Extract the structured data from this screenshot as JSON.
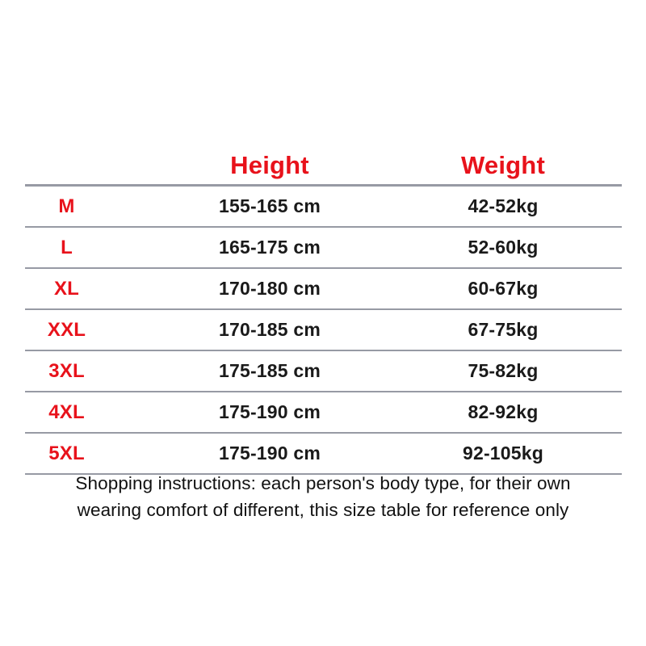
{
  "table": {
    "headers": {
      "size": "",
      "height": "Height",
      "weight": "Weight"
    },
    "rows": [
      {
        "size": "M",
        "height": "155-165 cm",
        "weight": "42-52kg"
      },
      {
        "size": "L",
        "height": "165-175 cm",
        "weight": "52-60kg"
      },
      {
        "size": "XL",
        "height": "170-180 cm",
        "weight": "60-67kg"
      },
      {
        "size": "XXL",
        "height": "170-185 cm",
        "weight": "67-75kg"
      },
      {
        "size": "3XL",
        "height": "175-185 cm",
        "weight": "75-82kg"
      },
      {
        "size": "4XL",
        "height": "175-190 cm",
        "weight": "82-92kg"
      },
      {
        "size": "5XL",
        "height": "175-190 cm",
        "weight": "92-105kg"
      }
    ]
  },
  "footer": {
    "note": "Shopping instructions: each person's body type, for their own wearing comfort of different, this size table for reference only"
  },
  "colors": {
    "accent_red": "#e8121b",
    "divider_gray": "#979aa4",
    "text_black": "#1a1a1a",
    "background": "#ffffff"
  }
}
